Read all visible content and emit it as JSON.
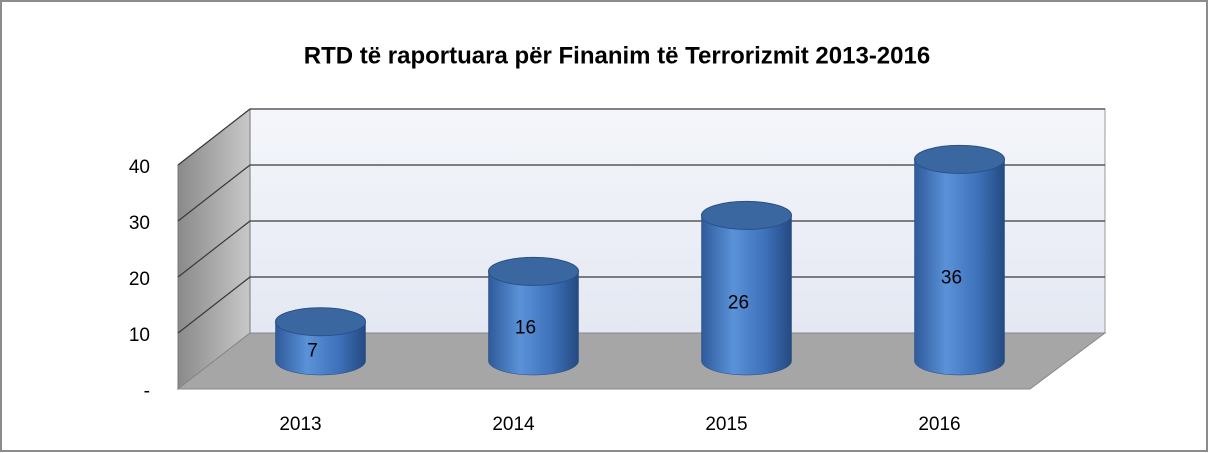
{
  "chart_data": {
    "type": "cylinder",
    "title": "RTD të raportuara për Finanim të Terrorizmit 2013-2016",
    "categories": [
      "2013",
      "2014",
      "2015",
      "2016"
    ],
    "values": [
      7,
      16,
      26,
      36
    ],
    "color": "#4a7fc8",
    "ylim": [
      0,
      40
    ],
    "yticks": [
      {
        "value": 0,
        "label": "-"
      },
      10,
      20,
      30,
      40
    ],
    "grid": true
  }
}
